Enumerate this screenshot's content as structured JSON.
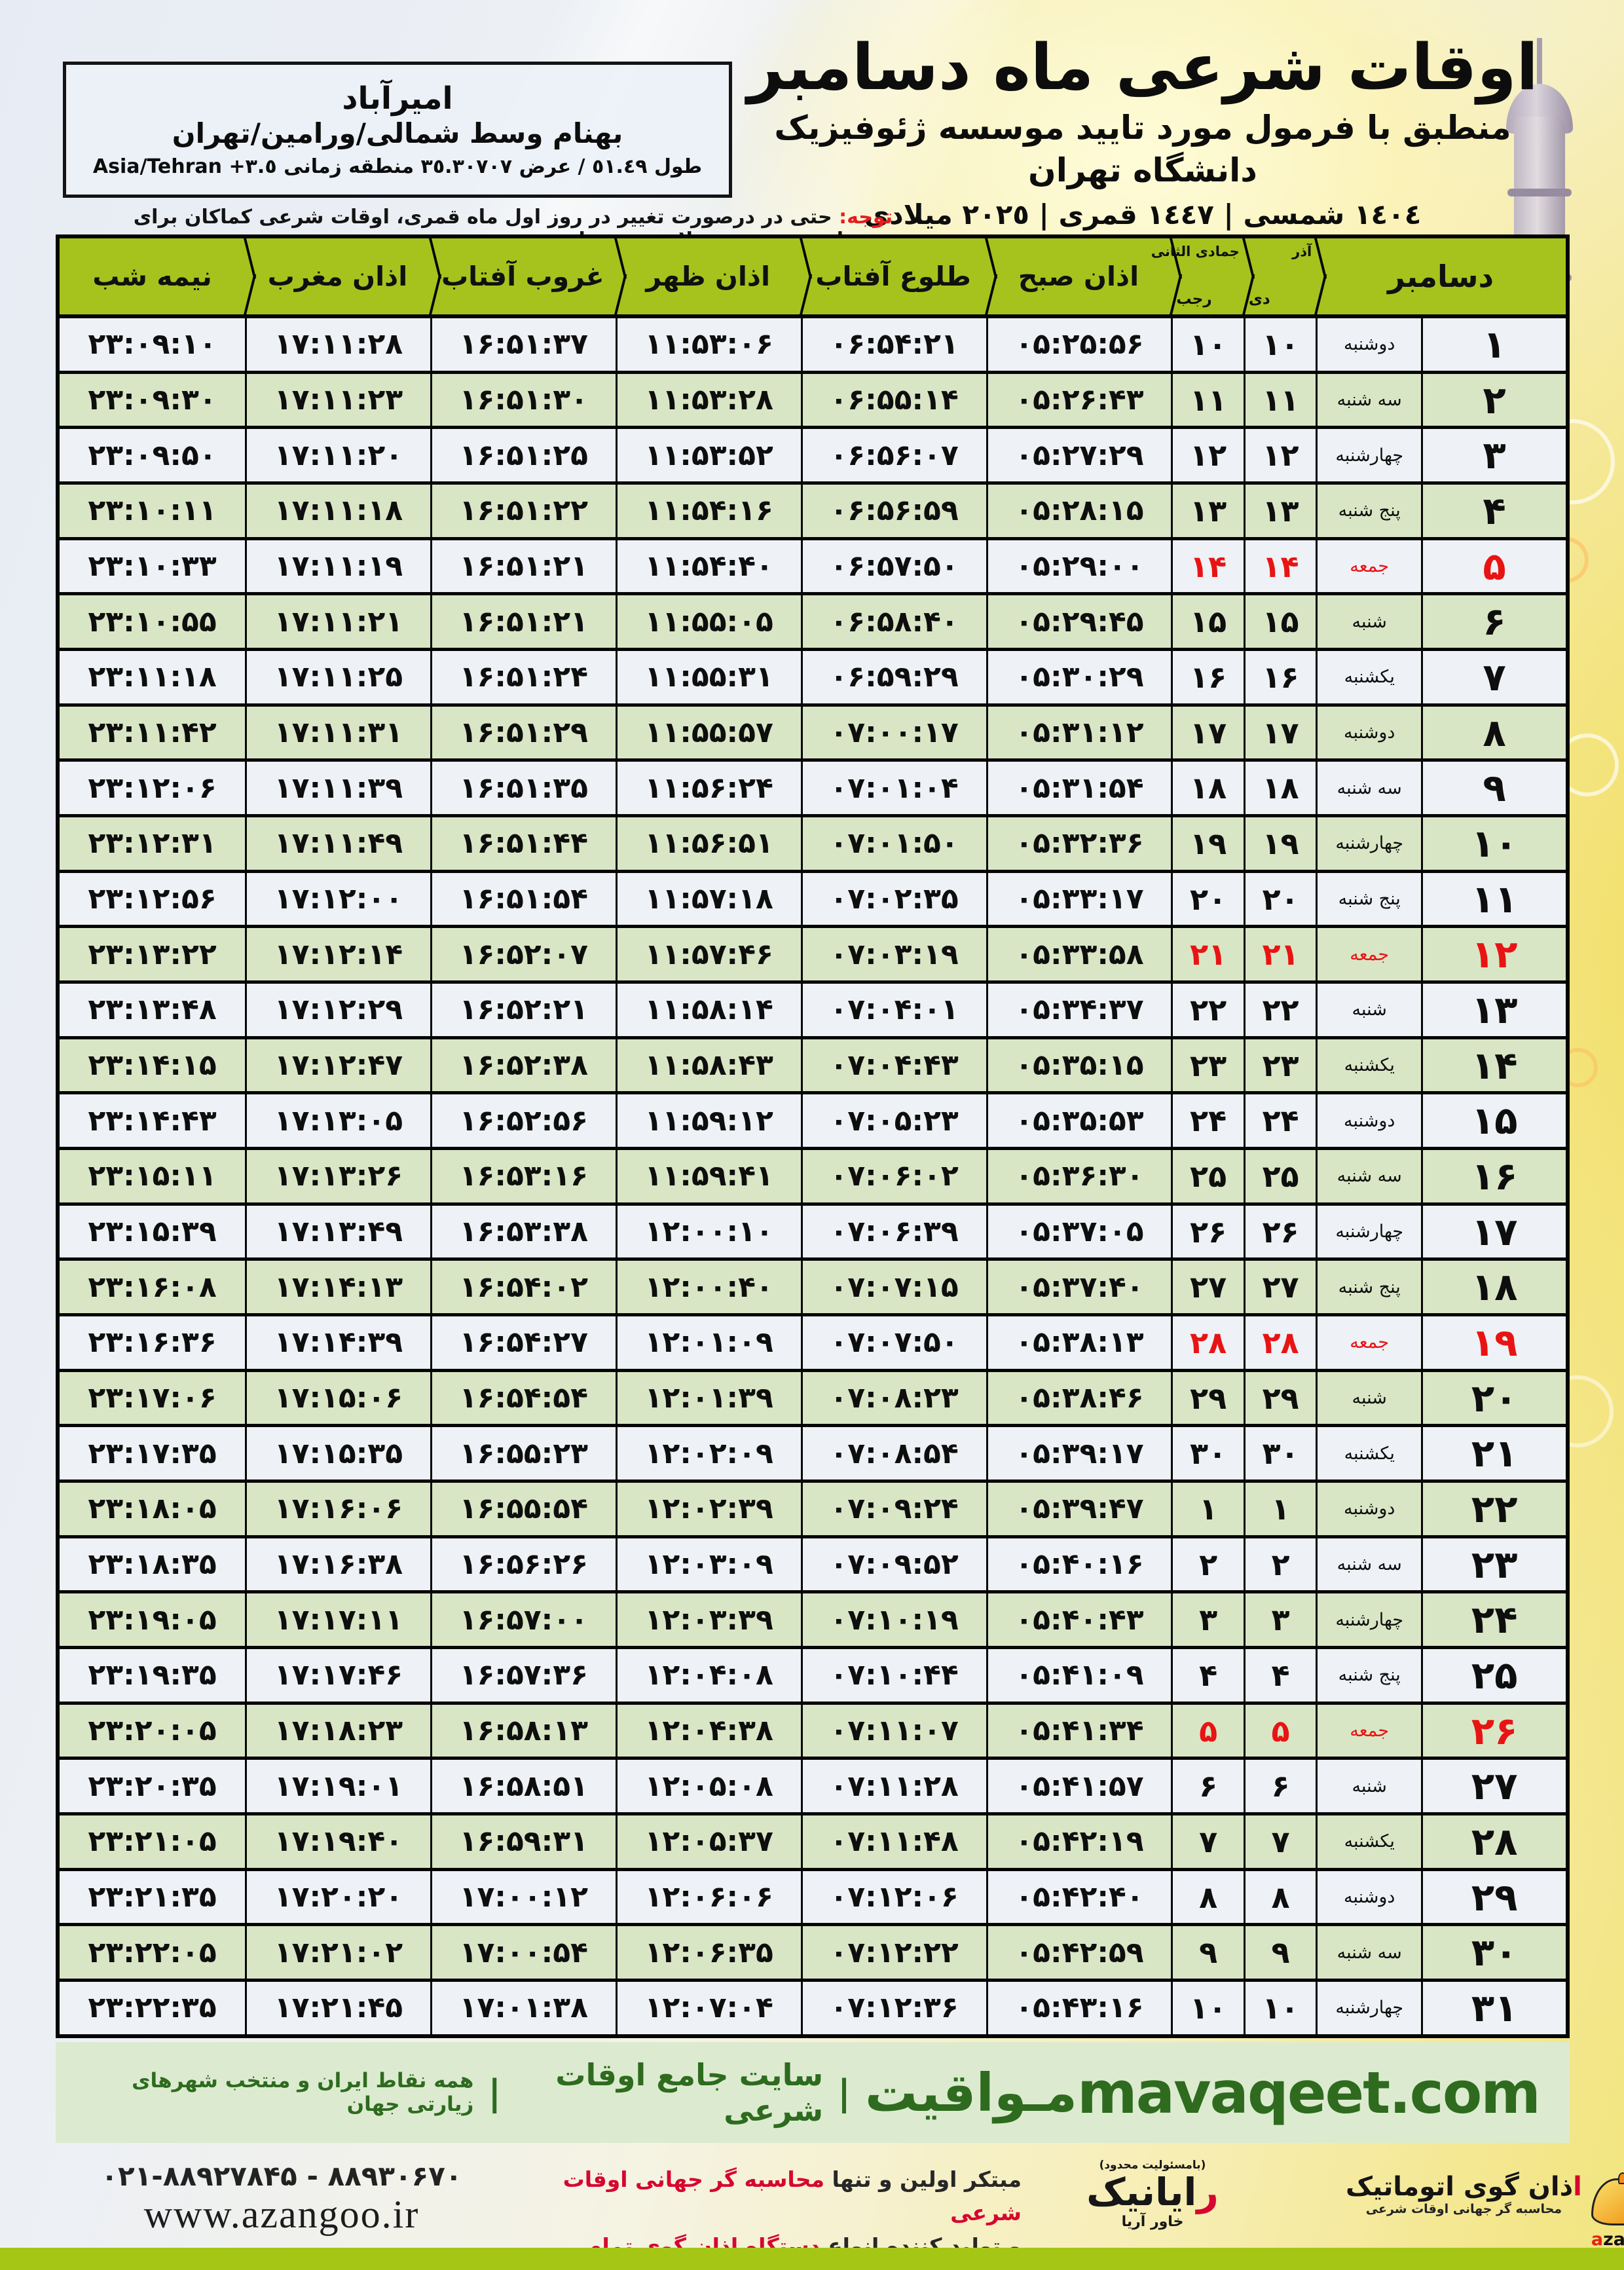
{
  "title_block": {
    "title": "اوقات شرعی ماه دسامبر",
    "subtitle": "منطبق با فرمول مورد تایید موسسه ژئوفیزیک دانشگاه تهران",
    "era_line": "١٤٠٤ شمسی | ١٤٤٧ قمری | ٢٠٢٥ میلادی"
  },
  "location": {
    "city": "امیرآباد",
    "region": "بهنام وسط شمالی/ورامین/تهران",
    "coords_rtl": "طول ٥١.٤٩ / عرض ٣٥.٣٠٧٠٧ منطقه زمانی",
    "coords_ltr": "Asia/Tehran +٣.٥"
  },
  "notice": {
    "label": "توجه:",
    "text": "حتی در درصورت تغییر در روز اول ماه قمری، اوقات شرعی کماکان برای روزهای شمسی و میلادی معتبر است."
  },
  "table": {
    "header": {
      "december": "دسامبر",
      "persian_months": {
        "top": "آذر",
        "bottom": "دی"
      },
      "hijri_months": {
        "top": "جمادی الثانی",
        "bottom": "رجب"
      },
      "fajr": "اذان صبح",
      "sunrise": "طلوع آفتاب",
      "dhuhr": "اذان ظهر",
      "sunset": "غروب آفتاب",
      "maghrib": "اذان مغرب",
      "midnight": "نیمه شب"
    },
    "rows": [
      {
        "day": "۱",
        "weekday": "دوشنبه",
        "persian_day": "۱۰",
        "hijri_day": "۱۰",
        "fajr": "۰۵:۲۵:۵۶",
        "sunrise": "۰۶:۵۴:۲۱",
        "dhuhr": "۱۱:۵۳:۰۶",
        "sunset": "۱۶:۵۱:۳۷",
        "maghrib": "۱۷:۱۱:۲۸",
        "midnight": "۲۳:۰۹:۱۰",
        "friday": false
      },
      {
        "day": "۲",
        "weekday": "سه شنبه",
        "persian_day": "۱۱",
        "hijri_day": "۱۱",
        "fajr": "۰۵:۲۶:۴۳",
        "sunrise": "۰۶:۵۵:۱۴",
        "dhuhr": "۱۱:۵۳:۲۸",
        "sunset": "۱۶:۵۱:۳۰",
        "maghrib": "۱۷:۱۱:۲۳",
        "midnight": "۲۳:۰۹:۳۰",
        "friday": false
      },
      {
        "day": "۳",
        "weekday": "چهارشنبه",
        "persian_day": "۱۲",
        "hijri_day": "۱۲",
        "fajr": "۰۵:۲۷:۲۹",
        "sunrise": "۰۶:۵۶:۰۷",
        "dhuhr": "۱۱:۵۳:۵۲",
        "sunset": "۱۶:۵۱:۲۵",
        "maghrib": "۱۷:۱۱:۲۰",
        "midnight": "۲۳:۰۹:۵۰",
        "friday": false
      },
      {
        "day": "۴",
        "weekday": "پنج شنبه",
        "persian_day": "۱۳",
        "hijri_day": "۱۳",
        "fajr": "۰۵:۲۸:۱۵",
        "sunrise": "۰۶:۵۶:۵۹",
        "dhuhr": "۱۱:۵۴:۱۶",
        "sunset": "۱۶:۵۱:۲۲",
        "maghrib": "۱۷:۱۱:۱۸",
        "midnight": "۲۳:۱۰:۱۱",
        "friday": false
      },
      {
        "day": "۵",
        "weekday": "جمعه",
        "persian_day": "۱۴",
        "hijri_day": "۱۴",
        "fajr": "۰۵:۲۹:۰۰",
        "sunrise": "۰۶:۵۷:۵۰",
        "dhuhr": "۱۱:۵۴:۴۰",
        "sunset": "۱۶:۵۱:۲۱",
        "maghrib": "۱۷:۱۱:۱۹",
        "midnight": "۲۳:۱۰:۳۳",
        "friday": true
      },
      {
        "day": "۶",
        "weekday": "شنبه",
        "persian_day": "۱۵",
        "hijri_day": "۱۵",
        "fajr": "۰۵:۲۹:۴۵",
        "sunrise": "۰۶:۵۸:۴۰",
        "dhuhr": "۱۱:۵۵:۰۵",
        "sunset": "۱۶:۵۱:۲۱",
        "maghrib": "۱۷:۱۱:۲۱",
        "midnight": "۲۳:۱۰:۵۵",
        "friday": false
      },
      {
        "day": "۷",
        "weekday": "یکشنبه",
        "persian_day": "۱۶",
        "hijri_day": "۱۶",
        "fajr": "۰۵:۳۰:۲۹",
        "sunrise": "۰۶:۵۹:۲۹",
        "dhuhr": "۱۱:۵۵:۳۱",
        "sunset": "۱۶:۵۱:۲۴",
        "maghrib": "۱۷:۱۱:۲۵",
        "midnight": "۲۳:۱۱:۱۸",
        "friday": false
      },
      {
        "day": "۸",
        "weekday": "دوشنبه",
        "persian_day": "۱۷",
        "hijri_day": "۱۷",
        "fajr": "۰۵:۳۱:۱۲",
        "sunrise": "۰۷:۰۰:۱۷",
        "dhuhr": "۱۱:۵۵:۵۷",
        "sunset": "۱۶:۵۱:۲۹",
        "maghrib": "۱۷:۱۱:۳۱",
        "midnight": "۲۳:۱۱:۴۲",
        "friday": false
      },
      {
        "day": "۹",
        "weekday": "سه شنبه",
        "persian_day": "۱۸",
        "hijri_day": "۱۸",
        "fajr": "۰۵:۳۱:۵۴",
        "sunrise": "۰۷:۰۱:۰۴",
        "dhuhr": "۱۱:۵۶:۲۴",
        "sunset": "۱۶:۵۱:۳۵",
        "maghrib": "۱۷:۱۱:۳۹",
        "midnight": "۲۳:۱۲:۰۶",
        "friday": false
      },
      {
        "day": "۱۰",
        "weekday": "چهارشنبه",
        "persian_day": "۱۹",
        "hijri_day": "۱۹",
        "fajr": "۰۵:۳۲:۳۶",
        "sunrise": "۰۷:۰۱:۵۰",
        "dhuhr": "۱۱:۵۶:۵۱",
        "sunset": "۱۶:۵۱:۴۴",
        "maghrib": "۱۷:۱۱:۴۹",
        "midnight": "۲۳:۱۲:۳۱",
        "friday": false
      },
      {
        "day": "۱۱",
        "weekday": "پنج شنبه",
        "persian_day": "۲۰",
        "hijri_day": "۲۰",
        "fajr": "۰۵:۳۳:۱۷",
        "sunrise": "۰۷:۰۲:۳۵",
        "dhuhr": "۱۱:۵۷:۱۸",
        "sunset": "۱۶:۵۱:۵۴",
        "maghrib": "۱۷:۱۲:۰۰",
        "midnight": "۲۳:۱۲:۵۶",
        "friday": false
      },
      {
        "day": "۱۲",
        "weekday": "جمعه",
        "persian_day": "۲۱",
        "hijri_day": "۲۱",
        "fajr": "۰۵:۳۳:۵۸",
        "sunrise": "۰۷:۰۳:۱۹",
        "dhuhr": "۱۱:۵۷:۴۶",
        "sunset": "۱۶:۵۲:۰۷",
        "maghrib": "۱۷:۱۲:۱۴",
        "midnight": "۲۳:۱۳:۲۲",
        "friday": true
      },
      {
        "day": "۱۳",
        "weekday": "شنبه",
        "persian_day": "۲۲",
        "hijri_day": "۲۲",
        "fajr": "۰۵:۳۴:۳۷",
        "sunrise": "۰۷:۰۴:۰۱",
        "dhuhr": "۱۱:۵۸:۱۴",
        "sunset": "۱۶:۵۲:۲۱",
        "maghrib": "۱۷:۱۲:۲۹",
        "midnight": "۲۳:۱۳:۴۸",
        "friday": false
      },
      {
        "day": "۱۴",
        "weekday": "یکشنبه",
        "persian_day": "۲۳",
        "hijri_day": "۲۳",
        "fajr": "۰۵:۳۵:۱۵",
        "sunrise": "۰۷:۰۴:۴۳",
        "dhuhr": "۱۱:۵۸:۴۳",
        "sunset": "۱۶:۵۲:۳۸",
        "maghrib": "۱۷:۱۲:۴۷",
        "midnight": "۲۳:۱۴:۱۵",
        "friday": false
      },
      {
        "day": "۱۵",
        "weekday": "دوشنبه",
        "persian_day": "۲۴",
        "hijri_day": "۲۴",
        "fajr": "۰۵:۳۵:۵۳",
        "sunrise": "۰۷:۰۵:۲۳",
        "dhuhr": "۱۱:۵۹:۱۲",
        "sunset": "۱۶:۵۲:۵۶",
        "maghrib": "۱۷:۱۳:۰۵",
        "midnight": "۲۳:۱۴:۴۳",
        "friday": false
      },
      {
        "day": "۱۶",
        "weekday": "سه شنبه",
        "persian_day": "۲۵",
        "hijri_day": "۲۵",
        "fajr": "۰۵:۳۶:۳۰",
        "sunrise": "۰۷:۰۶:۰۲",
        "dhuhr": "۱۱:۵۹:۴۱",
        "sunset": "۱۶:۵۳:۱۶",
        "maghrib": "۱۷:۱۳:۲۶",
        "midnight": "۲۳:۱۵:۱۱",
        "friday": false
      },
      {
        "day": "۱۷",
        "weekday": "چهارشنبه",
        "persian_day": "۲۶",
        "hijri_day": "۲۶",
        "fajr": "۰۵:۳۷:۰۵",
        "sunrise": "۰۷:۰۶:۳۹",
        "dhuhr": "۱۲:۰۰:۱۰",
        "sunset": "۱۶:۵۳:۳۸",
        "maghrib": "۱۷:۱۳:۴۹",
        "midnight": "۲۳:۱۵:۳۹",
        "friday": false
      },
      {
        "day": "۱۸",
        "weekday": "پنج شنبه",
        "persian_day": "۲۷",
        "hijri_day": "۲۷",
        "fajr": "۰۵:۳۷:۴۰",
        "sunrise": "۰۷:۰۷:۱۵",
        "dhuhr": "۱۲:۰۰:۴۰",
        "sunset": "۱۶:۵۴:۰۲",
        "maghrib": "۱۷:۱۴:۱۳",
        "midnight": "۲۳:۱۶:۰۸",
        "friday": false
      },
      {
        "day": "۱۹",
        "weekday": "جمعه",
        "persian_day": "۲۸",
        "hijri_day": "۲۸",
        "fajr": "۰۵:۳۸:۱۳",
        "sunrise": "۰۷:۰۷:۵۰",
        "dhuhr": "۱۲:۰۱:۰۹",
        "sunset": "۱۶:۵۴:۲۷",
        "maghrib": "۱۷:۱۴:۳۹",
        "midnight": "۲۳:۱۶:۳۶",
        "friday": true
      },
      {
        "day": "۲۰",
        "weekday": "شنبه",
        "persian_day": "۲۹",
        "hijri_day": "۲۹",
        "fajr": "۰۵:۳۸:۴۶",
        "sunrise": "۰۷:۰۸:۲۳",
        "dhuhr": "۱۲:۰۱:۳۹",
        "sunset": "۱۶:۵۴:۵۴",
        "maghrib": "۱۷:۱۵:۰۶",
        "midnight": "۲۳:۱۷:۰۶",
        "friday": false
      },
      {
        "day": "۲۱",
        "weekday": "یکشنبه",
        "persian_day": "۳۰",
        "hijri_day": "۳۰",
        "fajr": "۰۵:۳۹:۱۷",
        "sunrise": "۰۷:۰۸:۵۴",
        "dhuhr": "۱۲:۰۲:۰۹",
        "sunset": "۱۶:۵۵:۲۳",
        "maghrib": "۱۷:۱۵:۳۵",
        "midnight": "۲۳:۱۷:۳۵",
        "friday": false
      },
      {
        "day": "۲۲",
        "weekday": "دوشنبه",
        "persian_day": "۱",
        "hijri_day": "۱",
        "fajr": "۰۵:۳۹:۴۷",
        "sunrise": "۰۷:۰۹:۲۴",
        "dhuhr": "۱۲:۰۲:۳۹",
        "sunset": "۱۶:۵۵:۵۴",
        "maghrib": "۱۷:۱۶:۰۶",
        "midnight": "۲۳:۱۸:۰۵",
        "friday": false
      },
      {
        "day": "۲۳",
        "weekday": "سه شنبه",
        "persian_day": "۲",
        "hijri_day": "۲",
        "fajr": "۰۵:۴۰:۱۶",
        "sunrise": "۰۷:۰۹:۵۲",
        "dhuhr": "۱۲:۰۳:۰۹",
        "sunset": "۱۶:۵۶:۲۶",
        "maghrib": "۱۷:۱۶:۳۸",
        "midnight": "۲۳:۱۸:۳۵",
        "friday": false
      },
      {
        "day": "۲۴",
        "weekday": "چهارشنبه",
        "persian_day": "۳",
        "hijri_day": "۳",
        "fajr": "۰۵:۴۰:۴۳",
        "sunrise": "۰۷:۱۰:۱۹",
        "dhuhr": "۱۲:۰۳:۳۹",
        "sunset": "۱۶:۵۷:۰۰",
        "maghrib": "۱۷:۱۷:۱۱",
        "midnight": "۲۳:۱۹:۰۵",
        "friday": false
      },
      {
        "day": "۲۵",
        "weekday": "پنج شنبه",
        "persian_day": "۴",
        "hijri_day": "۴",
        "fajr": "۰۵:۴۱:۰۹",
        "sunrise": "۰۷:۱۰:۴۴",
        "dhuhr": "۱۲:۰۴:۰۸",
        "sunset": "۱۶:۵۷:۳۶",
        "maghrib": "۱۷:۱۷:۴۶",
        "midnight": "۲۳:۱۹:۳۵",
        "friday": false
      },
      {
        "day": "۲۶",
        "weekday": "جمعه",
        "persian_day": "۵",
        "hijri_day": "۵",
        "fajr": "۰۵:۴۱:۳۴",
        "sunrise": "۰۷:۱۱:۰۷",
        "dhuhr": "۱۲:۰۴:۳۸",
        "sunset": "۱۶:۵۸:۱۳",
        "maghrib": "۱۷:۱۸:۲۳",
        "midnight": "۲۳:۲۰:۰۵",
        "friday": true
      },
      {
        "day": "۲۷",
        "weekday": "شنبه",
        "persian_day": "۶",
        "hijri_day": "۶",
        "fajr": "۰۵:۴۱:۵۷",
        "sunrise": "۰۷:۱۱:۲۸",
        "dhuhr": "۱۲:۰۵:۰۸",
        "sunset": "۱۶:۵۸:۵۱",
        "maghrib": "۱۷:۱۹:۰۱",
        "midnight": "۲۳:۲۰:۳۵",
        "friday": false
      },
      {
        "day": "۲۸",
        "weekday": "یکشنبه",
        "persian_day": "۷",
        "hijri_day": "۷",
        "fajr": "۰۵:۴۲:۱۹",
        "sunrise": "۰۷:۱۱:۴۸",
        "dhuhr": "۱۲:۰۵:۳۷",
        "sunset": "۱۶:۵۹:۳۱",
        "maghrib": "۱۷:۱۹:۴۰",
        "midnight": "۲۳:۲۱:۰۵",
        "friday": false
      },
      {
        "day": "۲۹",
        "weekday": "دوشنبه",
        "persian_day": "۸",
        "hijri_day": "۸",
        "fajr": "۰۵:۴۲:۴۰",
        "sunrise": "۰۷:۱۲:۰۶",
        "dhuhr": "۱۲:۰۶:۰۶",
        "sunset": "۱۷:۰۰:۱۲",
        "maghrib": "۱۷:۲۰:۲۰",
        "midnight": "۲۳:۲۱:۳۵",
        "friday": false
      },
      {
        "day": "۳۰",
        "weekday": "سه شنبه",
        "persian_day": "۹",
        "hijri_day": "۹",
        "fajr": "۰۵:۴۲:۵۹",
        "sunrise": "۰۷:۱۲:۲۲",
        "dhuhr": "۱۲:۰۶:۳۵",
        "sunset": "۱۷:۰۰:۵۴",
        "maghrib": "۱۷:۲۱:۰۲",
        "midnight": "۲۳:۲۲:۰۵",
        "friday": false
      },
      {
        "day": "۳۱",
        "weekday": "چهارشنبه",
        "persian_day": "۱۰",
        "hijri_day": "۱۰",
        "fajr": "۰۵:۴۳:۱۶",
        "sunrise": "۰۷:۱۲:۳۶",
        "dhuhr": "۱۲:۰۷:۰۴",
        "sunset": "۱۷:۰۱:۳۸",
        "maghrib": "۱۷:۲۱:۴۵",
        "midnight": "۲۳:۲۲:۳۵",
        "friday": false
      }
    ]
  },
  "mavaqeet_bar": {
    "brand": "مـواقیت",
    "sep": "|",
    "tagline1": "سایت جامع اوقات شرعی",
    "tagline2": "همه نقاط ایران و منتخب شهرهای زیارتی جهان",
    "url": "mavaqeet.com"
  },
  "footer": {
    "phone": "۰۲۱-۸۸۹۲۷۸۴۵ - ۸۸۹۳۰۶۷۰",
    "website": "www.azangoo.ir",
    "slogan_black1": "مبتکر اولین و تنها ",
    "slogan_red1": "محاسبه گر جهانی اوقات شرعی",
    "slogan_black2": "و تولید کننده انواع ",
    "slogan_red2": "دستگاه اذان گوی تمام خودکار ماهواره ای",
    "rayanik_note": "(بامسئولیت محدود)",
    "rayanik_name_first": "ر",
    "rayanik_name_rest": "ایانیک",
    "rayanik_sub": "خاور آریا",
    "azangoo_fa_first": "ا",
    "azangoo_fa_rest": "ذان گوی اتوماتیک",
    "azangoo_tagline": "محاسبه گر جهانی اوقات شرعی",
    "azangoo_latin_first": "a",
    "azangoo_latin_rest": "zangoo"
  },
  "colors": {
    "header_green": "#a6c31d",
    "row_even_green": "#d9e6c5",
    "row_odd_white": "#eef1f6",
    "friday_red": "#e81414",
    "footer_bar_green": "#dcebcf",
    "footer_text_green": "#2e6b1f",
    "bottom_strip_green": "#a6c616"
  }
}
